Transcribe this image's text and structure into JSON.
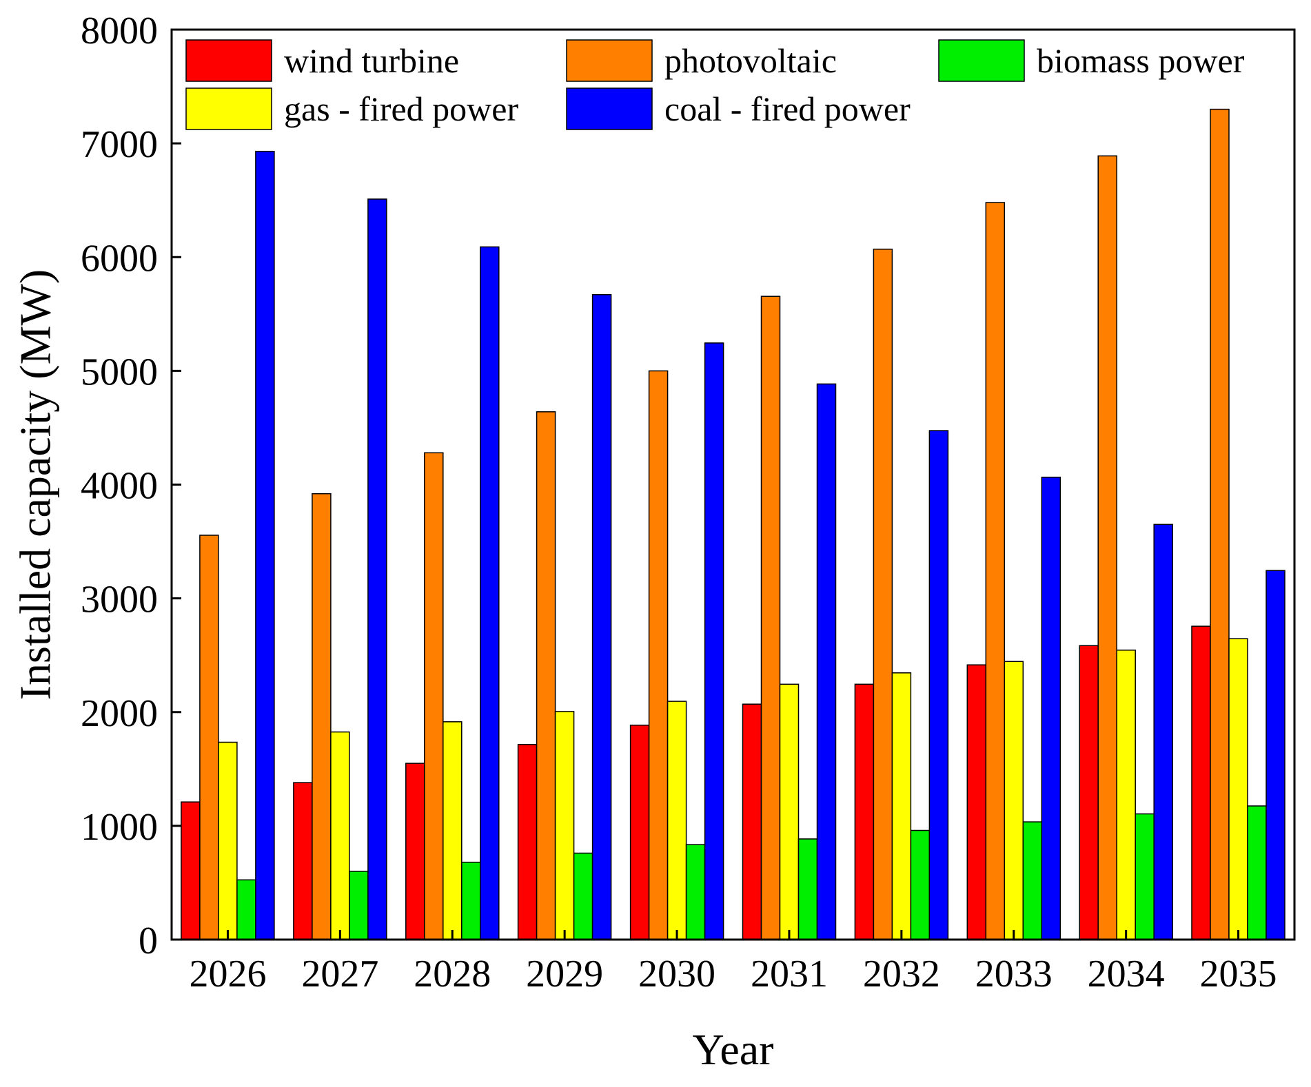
{
  "chart_data": {
    "type": "bar",
    "title": "",
    "xlabel": "Year",
    "ylabel": "Installed capacity (MW)",
    "ylim": [
      0,
      8000
    ],
    "yticks": [
      0,
      1000,
      2000,
      3000,
      4000,
      5000,
      6000,
      7000,
      8000
    ],
    "grid": false,
    "legend_position": "top",
    "categories": [
      "2026",
      "2027",
      "2028",
      "2029",
      "2030",
      "2031",
      "2032",
      "2033",
      "2034",
      "2035"
    ],
    "series": [
      {
        "name": "wind turbine",
        "color": "#ff0000",
        "values": [
          1210,
          1380,
          1550,
          1715,
          1885,
          2070,
          2245,
          2415,
          2585,
          2755
        ]
      },
      {
        "name": "photovoltaic",
        "color": "#ff7f00",
        "values": [
          3555,
          3920,
          4280,
          4640,
          5000,
          5655,
          6070,
          6480,
          6890,
          7300
        ]
      },
      {
        "name": "gas - fired power",
        "color": "#ffff00",
        "values": [
          1735,
          1825,
          1915,
          2005,
          2095,
          2245,
          2345,
          2445,
          2545,
          2645
        ]
      },
      {
        "name": "biomass power",
        "color": "#00ee00",
        "values": [
          525,
          600,
          680,
          760,
          835,
          885,
          960,
          1035,
          1105,
          1175
        ]
      },
      {
        "name": "coal - fired power",
        "color": "#0000ff",
        "values": [
          6930,
          6510,
          6090,
          5670,
          5245,
          4885,
          4475,
          4065,
          3650,
          3245
        ]
      }
    ],
    "legend": [
      {
        "name": "wind turbine",
        "color": "#ff0000"
      },
      {
        "name": "photovoltaic",
        "color": "#ff7f00"
      },
      {
        "name": "biomass power",
        "color": "#00ee00"
      },
      {
        "name": "gas - fired power",
        "color": "#ffff00"
      },
      {
        "name": "coal - fired power",
        "color": "#0000ff"
      }
    ]
  }
}
